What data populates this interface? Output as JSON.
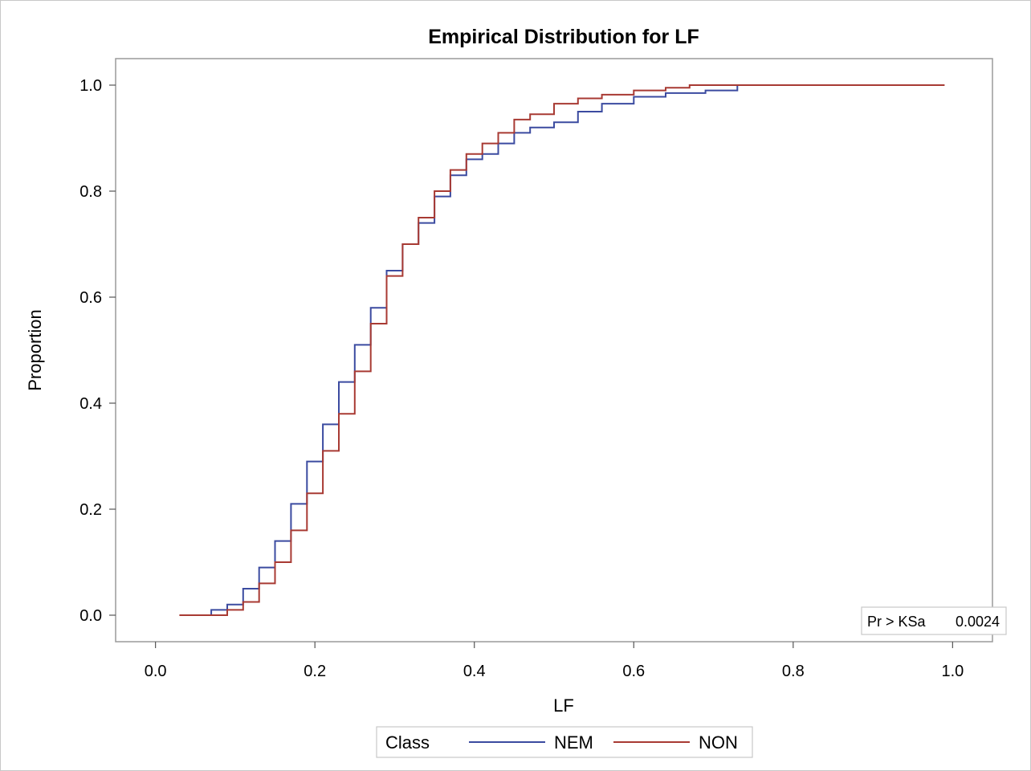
{
  "chart_data": {
    "type": "line",
    "step": true,
    "title": "Empirical Distribution for LF",
    "xlabel": "LF",
    "ylabel": "Proportion",
    "xlim": [
      -0.05,
      1.05
    ],
    "ylim": [
      -0.05,
      1.05
    ],
    "xticks": [
      "0.0",
      "0.2",
      "0.4",
      "0.6",
      "0.8",
      "1.0"
    ],
    "yticks": [
      "0.0",
      "0.2",
      "0.4",
      "0.6",
      "0.8",
      "1.0"
    ],
    "grid": false,
    "legend": {
      "position": "bottom",
      "title": "Class",
      "items": [
        {
          "name": "NEM",
          "color": "#3b4ba0"
        },
        {
          "name": "NON",
          "color": "#a83a33"
        }
      ]
    },
    "inset": {
      "label": "Pr > KSa",
      "value": "0.0024",
      "position": "bottom-right"
    },
    "series": [
      {
        "name": "NEM",
        "color": "#3b4ba0",
        "points": [
          [
            0.05,
            0.0
          ],
          [
            0.07,
            0.01
          ],
          [
            0.09,
            0.02
          ],
          [
            0.11,
            0.05
          ],
          [
            0.13,
            0.09
          ],
          [
            0.15,
            0.14
          ],
          [
            0.17,
            0.21
          ],
          [
            0.19,
            0.29
          ],
          [
            0.21,
            0.36
          ],
          [
            0.23,
            0.44
          ],
          [
            0.25,
            0.51
          ],
          [
            0.27,
            0.58
          ],
          [
            0.29,
            0.65
          ],
          [
            0.31,
            0.7
          ],
          [
            0.33,
            0.74
          ],
          [
            0.35,
            0.79
          ],
          [
            0.37,
            0.83
          ],
          [
            0.39,
            0.86
          ],
          [
            0.41,
            0.87
          ],
          [
            0.43,
            0.89
          ],
          [
            0.45,
            0.91
          ],
          [
            0.47,
            0.92
          ],
          [
            0.5,
            0.93
          ],
          [
            0.53,
            0.95
          ],
          [
            0.56,
            0.965
          ],
          [
            0.6,
            0.978
          ],
          [
            0.64,
            0.985
          ],
          [
            0.69,
            0.99
          ],
          [
            0.73,
            1.0
          ]
        ]
      },
      {
        "name": "NON",
        "color": "#a83a33",
        "points": [
          [
            0.03,
            0.0
          ],
          [
            0.07,
            0.0
          ],
          [
            0.09,
            0.01
          ],
          [
            0.11,
            0.025
          ],
          [
            0.13,
            0.06
          ],
          [
            0.15,
            0.1
          ],
          [
            0.17,
            0.16
          ],
          [
            0.19,
            0.23
          ],
          [
            0.21,
            0.31
          ],
          [
            0.23,
            0.38
          ],
          [
            0.25,
            0.46
          ],
          [
            0.27,
            0.55
          ],
          [
            0.29,
            0.64
          ],
          [
            0.31,
            0.7
          ],
          [
            0.33,
            0.75
          ],
          [
            0.35,
            0.8
          ],
          [
            0.37,
            0.84
          ],
          [
            0.39,
            0.87
          ],
          [
            0.41,
            0.89
          ],
          [
            0.43,
            0.91
          ],
          [
            0.45,
            0.935
          ],
          [
            0.47,
            0.945
          ],
          [
            0.5,
            0.965
          ],
          [
            0.53,
            0.975
          ],
          [
            0.56,
            0.982
          ],
          [
            0.6,
            0.99
          ],
          [
            0.64,
            0.995
          ],
          [
            0.67,
            1.0
          ],
          [
            0.92,
            1.0
          ],
          [
            0.99,
            1.0
          ]
        ]
      }
    ]
  }
}
